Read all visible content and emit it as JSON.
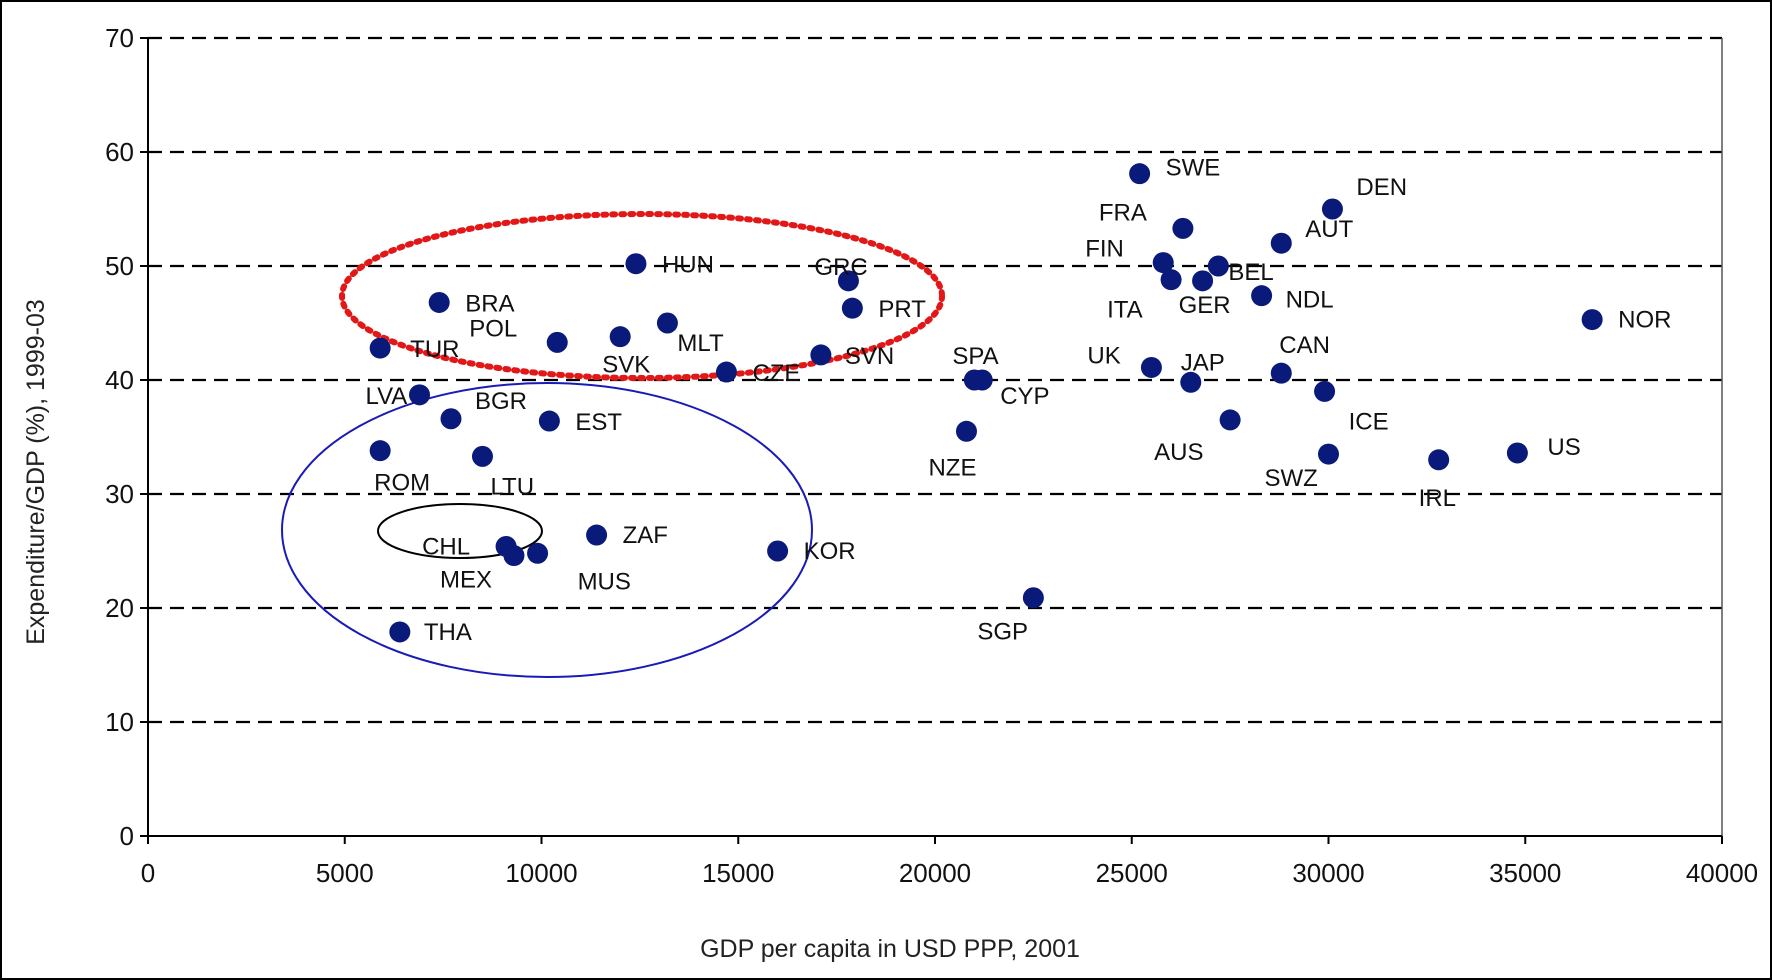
{
  "chart_data": {
    "type": "scatter",
    "xlabel": "GDP per capita in USD PPP, 2001",
    "ylabel": "Expenditure/GDP (%), 1999-03",
    "xlim": [
      0,
      40000
    ],
    "ylim": [
      0,
      70
    ],
    "xticks": [
      "0",
      "5000",
      "10000",
      "15000",
      "20000",
      "25000",
      "30000",
      "35000",
      "40000"
    ],
    "yticks": [
      "0",
      "10",
      "20",
      "30",
      "40",
      "50",
      "60",
      "70"
    ],
    "grid": "horizontal-dashed",
    "point_color": "#0a1a7a",
    "points": [
      {
        "label": "BRA",
        "x": 7400,
        "y": 46.8
      },
      {
        "label": "TUR",
        "x": 5900,
        "y": 42.8
      },
      {
        "label": "POL",
        "x": 10400,
        "y": 43.3
      },
      {
        "label": "SVK",
        "x": 12000,
        "y": 43.8
      },
      {
        "label": "HUN",
        "x": 12400,
        "y": 50.2
      },
      {
        "label": "MLT",
        "x": 13200,
        "y": 45.0
      },
      {
        "label": "CZE",
        "x": 14700,
        "y": 40.7
      },
      {
        "label": "SVN",
        "x": 17100,
        "y": 42.2
      },
      {
        "label": "GRC",
        "x": 17800,
        "y": 48.7
      },
      {
        "label": "PRT",
        "x": 17900,
        "y": 46.3
      },
      {
        "label": "LVA",
        "x": 6900,
        "y": 38.7
      },
      {
        "label": "BGR",
        "x": 7700,
        "y": 36.6
      },
      {
        "label": "EST",
        "x": 10200,
        "y": 36.4
      },
      {
        "label": "ROM",
        "x": 5900,
        "y": 33.8
      },
      {
        "label": "LTU",
        "x": 8500,
        "y": 33.3
      },
      {
        "label": "CHL",
        "x": 9100,
        "y": 25.4
      },
      {
        "label": "MEX",
        "x": 9300,
        "y": 24.6
      },
      {
        "label": "MUS",
        "x": 9900,
        "y": 24.8
      },
      {
        "label": "ZAF",
        "x": 11400,
        "y": 26.4
      },
      {
        "label": "KOR",
        "x": 16000,
        "y": 25.0
      },
      {
        "label": "THA",
        "x": 6400,
        "y": 17.9
      },
      {
        "label": "SPA",
        "x": 21000,
        "y": 40.0
      },
      {
        "label": "CYP",
        "x": 21200,
        "y": 40.0
      },
      {
        "label": "NZE",
        "x": 20800,
        "y": 35.5
      },
      {
        "label": "SGP",
        "x": 22500,
        "y": 20.9
      },
      {
        "label": "SWE",
        "x": 25200,
        "y": 58.1
      },
      {
        "label": "FRA",
        "x": 26300,
        "y": 53.3
      },
      {
        "label": "FIN",
        "x": 25800,
        "y": 50.3
      },
      {
        "label": "ITA",
        "x": 26000,
        "y": 48.8
      },
      {
        "label": "GER",
        "x": 26800,
        "y": 48.7
      },
      {
        "label": "BEL",
        "x": 27200,
        "y": 50.0
      },
      {
        "label": "NDL",
        "x": 28300,
        "y": 47.4
      },
      {
        "label": "AUT",
        "x": 28800,
        "y": 52.0
      },
      {
        "label": "DEN",
        "x": 30100,
        "y": 55.0
      },
      {
        "label": "UK",
        "x": 25500,
        "y": 41.1
      },
      {
        "label": "JAP",
        "x": 26500,
        "y": 39.8
      },
      {
        "label": "CAN",
        "x": 28800,
        "y": 40.6
      },
      {
        "label": "AUS",
        "x": 27500,
        "y": 36.5
      },
      {
        "label": "ICE",
        "x": 29900,
        "y": 39.0
      },
      {
        "label": "SWZ",
        "x": 30000,
        "y": 33.5
      },
      {
        "label": "IRL",
        "x": 32800,
        "y": 33.0
      },
      {
        "label": "US",
        "x": 34800,
        "y": 33.6
      },
      {
        "label": "NOR",
        "x": 36700,
        "y": 45.3
      }
    ]
  }
}
